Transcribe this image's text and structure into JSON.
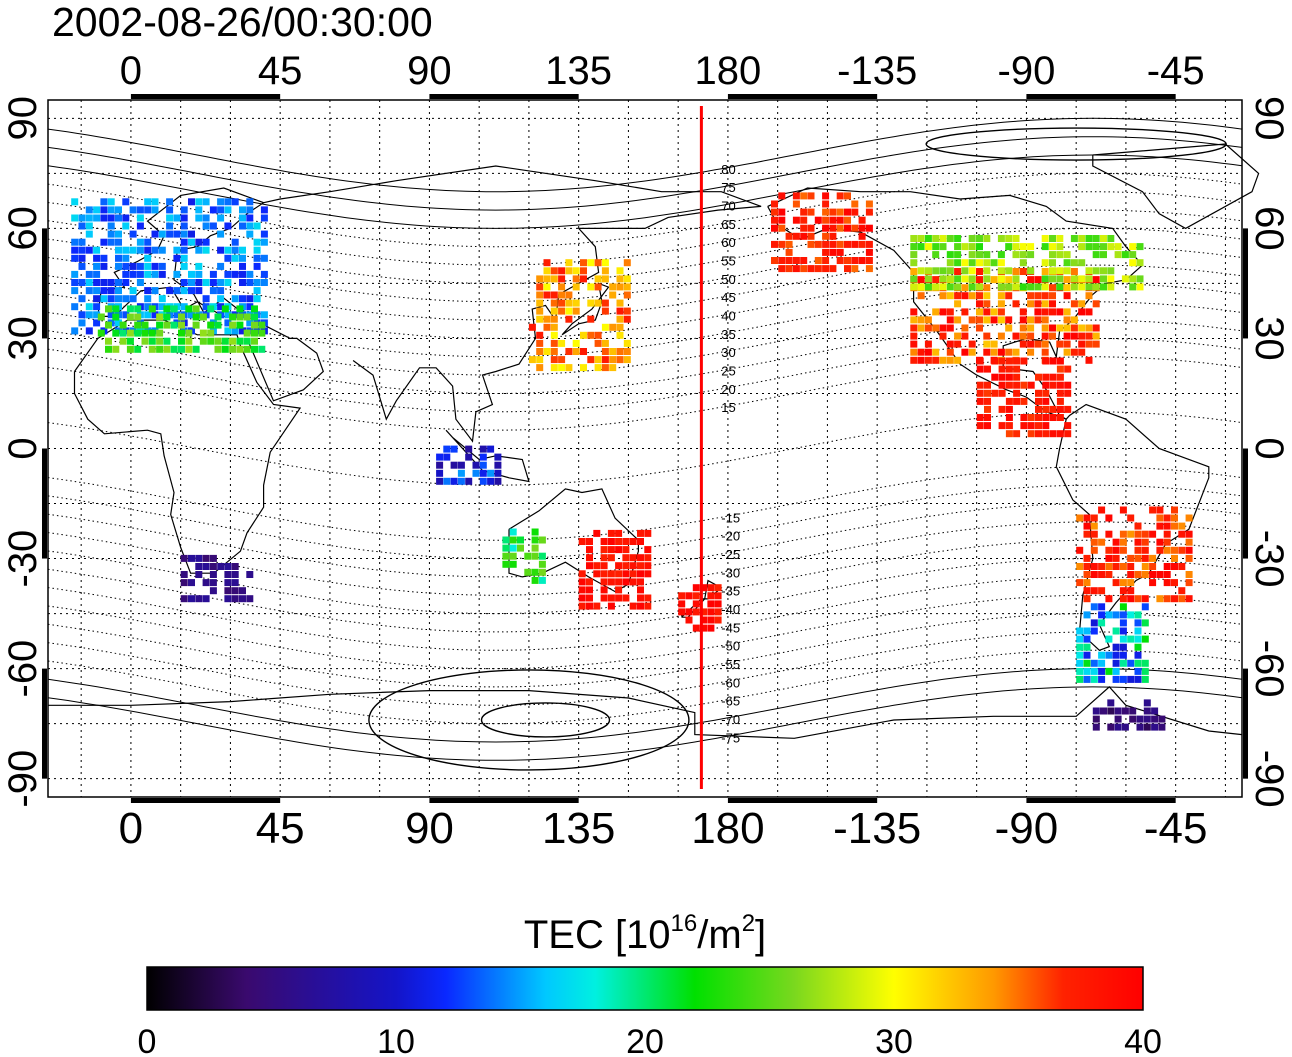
{
  "title": "2002-08-26/00:30:00",
  "colorbar": {
    "label_prefix": "TEC  [10",
    "label_sup1": "16",
    "label_mid": "/m",
    "label_sup2": "2",
    "label_suffix": "]",
    "ticks": [
      "0",
      "10",
      "20",
      "30",
      "40"
    ],
    "range": [
      0,
      40
    ],
    "colormap": "jet"
  },
  "axes": {
    "x_ticks": [
      "0",
      "45",
      "90",
      "135",
      "180",
      "-135",
      "-90",
      "-45"
    ],
    "y_ticks": [
      "90",
      "60",
      "30",
      "0",
      "-30",
      "-60",
      "-90"
    ],
    "lon_range": [
      -25,
      335
    ],
    "lat_range": [
      -95,
      95
    ],
    "grid": true,
    "grid_step_deg": 15
  },
  "meridian_marker": {
    "longitude": 172,
    "color": "#ff0000"
  },
  "contour_labels": [
    "80",
    "75",
    "70",
    "65",
    "60",
    "55",
    "50",
    "45",
    "40",
    "35",
    "30",
    "25",
    "20",
    "15",
    "-15",
    "-20",
    "-25",
    "-30",
    "-35",
    "-40",
    "-45",
    "-50",
    "-55",
    "-60",
    "-65",
    "-70",
    "-75"
  ],
  "tec_regions": [
    {
      "name": "europe",
      "lon": [
        -18,
        40
      ],
      "lat": [
        33,
        70
      ],
      "tec": [
        11,
        17
      ]
    },
    {
      "name": "europe-south",
      "lon": [
        -10,
        40
      ],
      "lat": [
        28,
        40
      ],
      "tec": [
        20,
        27
      ]
    },
    {
      "name": "east-asia",
      "lon": [
        120,
        150
      ],
      "lat": [
        23,
        52
      ],
      "tec": [
        30,
        38
      ]
    },
    {
      "name": "alaska",
      "lon": [
        193,
        222
      ],
      "lat": [
        50,
        70
      ],
      "tec": [
        35,
        40
      ]
    },
    {
      "name": "north-america",
      "lon": [
        235,
        290
      ],
      "lat": [
        25,
        50
      ],
      "tec": [
        32,
        40
      ]
    },
    {
      "name": "north-america-north",
      "lon": [
        235,
        305
      ],
      "lat": [
        45,
        60
      ],
      "tec": [
        23,
        30
      ]
    },
    {
      "name": "central-america",
      "lon": [
        255,
        282
      ],
      "lat": [
        5,
        25
      ],
      "tec": [
        36,
        40
      ]
    },
    {
      "name": "new-zealand",
      "lon": [
        165,
        178
      ],
      "lat": [
        -48,
        -35
      ],
      "tec": [
        37,
        40
      ]
    },
    {
      "name": "south-america",
      "lon": [
        285,
        318
      ],
      "lat": [
        -40,
        -15
      ],
      "tec": [
        34,
        40
      ]
    },
    {
      "name": "south-america-south",
      "lon": [
        285,
        305
      ],
      "lat": [
        -62,
        -40
      ],
      "tec": [
        10,
        22
      ]
    },
    {
      "name": "antarctic-peninsula",
      "lon": [
        290,
        310
      ],
      "lat": [
        -75,
        -68
      ],
      "tec": [
        3,
        6
      ]
    },
    {
      "name": "africa-south",
      "lon": [
        15,
        35
      ],
      "lat": [
        -40,
        -28
      ],
      "tec": [
        4,
        7
      ]
    },
    {
      "name": "indonesia",
      "lon": [
        92,
        110
      ],
      "lat": [
        -8,
        2
      ],
      "tec": [
        7,
        15
      ]
    },
    {
      "name": "australia-east",
      "lon": [
        135,
        155
      ],
      "lat": [
        -42,
        -20
      ],
      "tec": [
        37,
        40
      ]
    },
    {
      "name": "australia-west",
      "lon": [
        112,
        125
      ],
      "lat": [
        -35,
        -20
      ],
      "tec": [
        18,
        26
      ]
    }
  ]
}
